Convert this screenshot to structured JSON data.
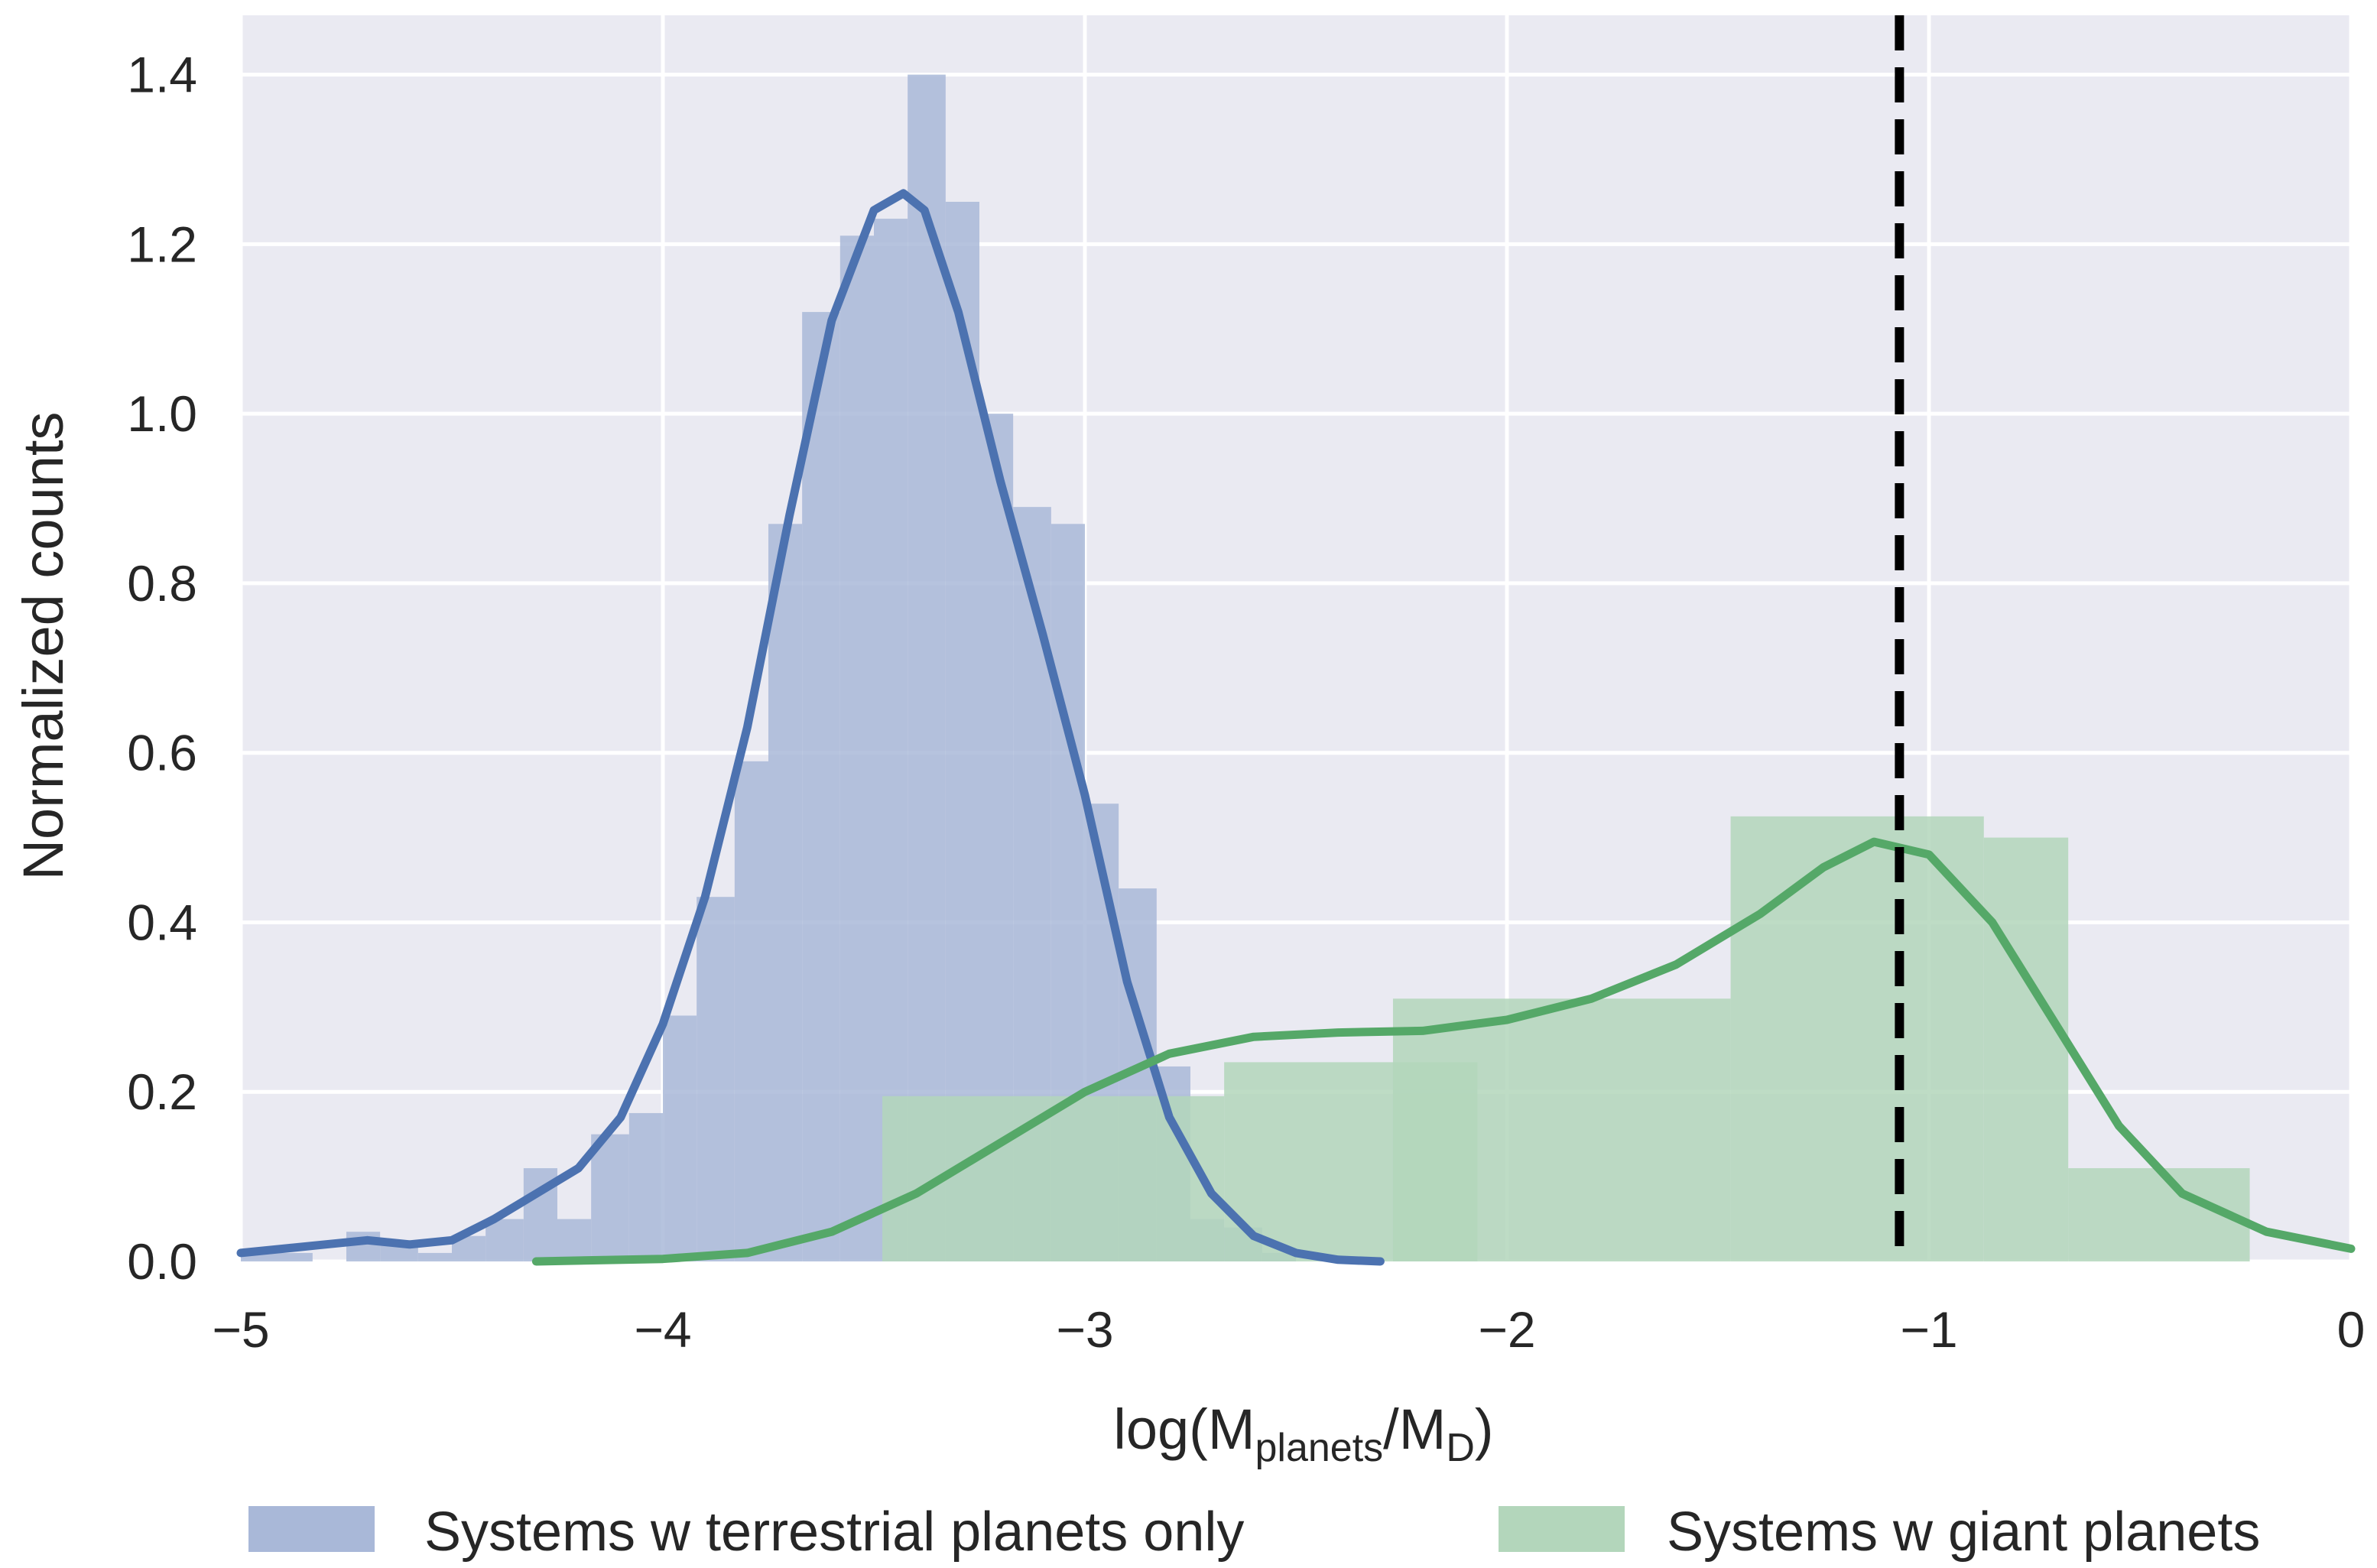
{
  "chart_data": {
    "type": "bar",
    "xlabel": {
      "prefix": "log(M",
      "sub1": "planets",
      "mid": "/M",
      "sub2": "D",
      "suffix": ")"
    },
    "ylabel": "Normalized counts",
    "xlim": [
      -5,
      0
    ],
    "ylim": [
      0,
      1.47
    ],
    "xticks": [
      -5,
      -4,
      -3,
      -2,
      -1,
      0
    ],
    "xtick_labels": [
      "−5",
      "−4",
      "−3",
      "−2",
      "−1",
      "0"
    ],
    "yticks": [
      0.0,
      0.2,
      0.4,
      0.6,
      0.8,
      1.0,
      1.2,
      1.4
    ],
    "ytick_labels": [
      "0.0",
      "0.2",
      "0.4",
      "0.6",
      "0.8",
      "1.0",
      "1.2",
      "1.4"
    ],
    "grid": true,
    "legend_position": "bottom",
    "vline": {
      "x": -1.07,
      "style": "dashed",
      "color": "#000000"
    },
    "series": [
      {
        "name": "Systems w terrestrial planets only",
        "color": "#4c72b0",
        "fill": "#a9b8d8",
        "bins": [
          [
            -5.0,
            -4.83,
            0.01
          ],
          [
            -4.75,
            -4.67,
            0.035
          ],
          [
            -4.67,
            -4.58,
            0.02
          ],
          [
            -4.58,
            -4.5,
            0.01
          ],
          [
            -4.5,
            -4.42,
            0.03
          ],
          [
            -4.42,
            -4.33,
            0.05
          ],
          [
            -4.33,
            -4.25,
            0.11
          ],
          [
            -4.25,
            -4.17,
            0.05
          ],
          [
            -4.17,
            -4.08,
            0.15
          ],
          [
            -4.08,
            -4.0,
            0.175
          ],
          [
            -4.0,
            -3.92,
            0.29
          ],
          [
            -3.92,
            -3.83,
            0.43
          ],
          [
            -3.83,
            -3.75,
            0.59
          ],
          [
            -3.75,
            -3.67,
            0.87
          ],
          [
            -3.67,
            -3.58,
            1.12
          ],
          [
            -3.58,
            -3.5,
            1.21
          ],
          [
            -3.5,
            -3.42,
            1.23
          ],
          [
            -3.42,
            -3.33,
            1.4
          ],
          [
            -3.33,
            -3.25,
            1.25
          ],
          [
            -3.25,
            -3.17,
            1.0
          ],
          [
            -3.17,
            -3.08,
            0.89
          ],
          [
            -3.08,
            -3.0,
            0.87
          ],
          [
            -3.0,
            -2.92,
            0.54
          ],
          [
            -2.92,
            -2.83,
            0.44
          ],
          [
            -2.83,
            -2.75,
            0.23
          ],
          [
            -2.75,
            -2.67,
            0.05
          ],
          [
            -2.67,
            -2.58,
            0.04
          ],
          [
            -2.58,
            -2.5,
            0.01
          ]
        ],
        "kde": [
          [
            -5.0,
            0.01
          ],
          [
            -4.9,
            0.015
          ],
          [
            -4.8,
            0.02
          ],
          [
            -4.7,
            0.025
          ],
          [
            -4.6,
            0.02
          ],
          [
            -4.5,
            0.025
          ],
          [
            -4.4,
            0.05
          ],
          [
            -4.3,
            0.08
          ],
          [
            -4.2,
            0.11
          ],
          [
            -4.1,
            0.17
          ],
          [
            -4.0,
            0.28
          ],
          [
            -3.9,
            0.43
          ],
          [
            -3.8,
            0.63
          ],
          [
            -3.7,
            0.88
          ],
          [
            -3.6,
            1.11
          ],
          [
            -3.5,
            1.24
          ],
          [
            -3.43,
            1.26
          ],
          [
            -3.38,
            1.24
          ],
          [
            -3.3,
            1.12
          ],
          [
            -3.2,
            0.92
          ],
          [
            -3.1,
            0.74
          ],
          [
            -3.0,
            0.55
          ],
          [
            -2.9,
            0.33
          ],
          [
            -2.8,
            0.17
          ],
          [
            -2.7,
            0.08
          ],
          [
            -2.6,
            0.03
          ],
          [
            -2.5,
            0.01
          ],
          [
            -2.4,
            0.002
          ],
          [
            -2.3,
            0.0
          ]
        ]
      },
      {
        "name": "Systems w giant planets",
        "color": "#55a868",
        "fill": "#b3d6bb",
        "bins": [
          [
            -3.48,
            -2.67,
            0.195
          ],
          [
            -2.67,
            -2.07,
            0.235
          ],
          [
            -2.27,
            -1.47,
            0.31
          ],
          [
            -1.47,
            -0.87,
            0.525
          ],
          [
            -0.87,
            -0.67,
            0.5
          ],
          [
            -0.67,
            -0.24,
            0.11
          ]
        ],
        "kde": [
          [
            -4.3,
            0.0
          ],
          [
            -4.0,
            0.003
          ],
          [
            -3.8,
            0.01
          ],
          [
            -3.6,
            0.035
          ],
          [
            -3.4,
            0.08
          ],
          [
            -3.2,
            0.14
          ],
          [
            -3.0,
            0.2
          ],
          [
            -2.8,
            0.245
          ],
          [
            -2.6,
            0.265
          ],
          [
            -2.4,
            0.27
          ],
          [
            -2.2,
            0.272
          ],
          [
            -2.0,
            0.285
          ],
          [
            -1.8,
            0.31
          ],
          [
            -1.6,
            0.35
          ],
          [
            -1.4,
            0.41
          ],
          [
            -1.25,
            0.465
          ],
          [
            -1.13,
            0.495
          ],
          [
            -1.0,
            0.48
          ],
          [
            -0.85,
            0.4
          ],
          [
            -0.7,
            0.28
          ],
          [
            -0.55,
            0.16
          ],
          [
            -0.4,
            0.08
          ],
          [
            -0.2,
            0.035
          ],
          [
            0.0,
            0.015
          ]
        ]
      }
    ]
  }
}
